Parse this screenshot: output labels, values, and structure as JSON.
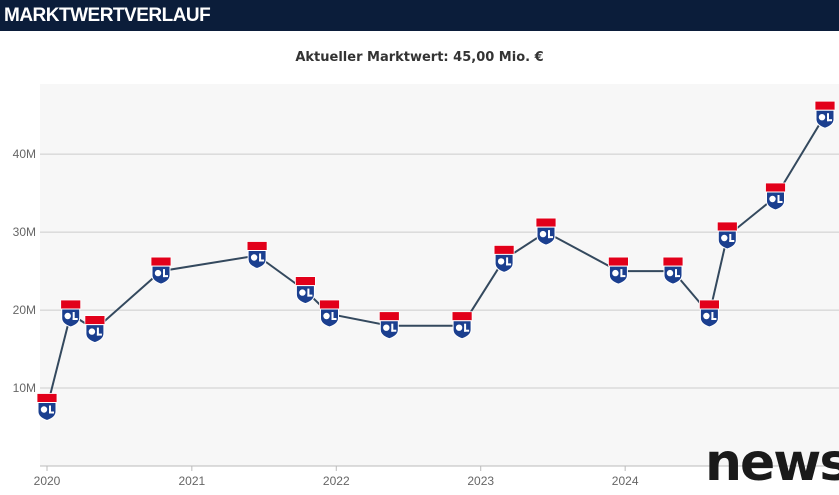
{
  "header": {
    "title": "MARKTWERTVERLAUF"
  },
  "subtitle": "Aktueller Marktwert: 45,00 Mio. €",
  "watermark": "news",
  "colors": {
    "header_bg": "#0b1d3a",
    "plot_bg": "#f7f7f7",
    "line": "#34495e",
    "grid": "#cccccc",
    "badge_red": "#e2001a",
    "badge_blue": "#1b3f8f"
  },
  "marker_icon": "olympique-lyonnais-crest-icon",
  "chart_data": {
    "type": "line",
    "title": "Aktueller Marktwert: 45,00 Mio. €",
    "xlabel": "",
    "ylabel": "",
    "x_ticks": [
      "2020",
      "2021",
      "2022",
      "2023",
      "2024"
    ],
    "y_ticks": [
      "10M",
      "20M",
      "30M",
      "40M"
    ],
    "ylim": [
      0,
      49
    ],
    "xlim": [
      "2020-01-01",
      "2025-05-20"
    ],
    "grid": "horizontal",
    "legend": "none",
    "series": [
      {
        "values": [
          {
            "x": "2020-01-01",
            "y": 7.5
          },
          {
            "x": "2020-03-01",
            "y": 19.5
          },
          {
            "x": "2020-05-01",
            "y": 17.5
          },
          {
            "x": "2020-10-15",
            "y": 25
          },
          {
            "x": "2021-06-15",
            "y": 27
          },
          {
            "x": "2021-10-15",
            "y": 22.5
          },
          {
            "x": "2021-12-15",
            "y": 19.5
          },
          {
            "x": "2022-05-15",
            "y": 18
          },
          {
            "x": "2022-11-15",
            "y": 18
          },
          {
            "x": "2023-03-01",
            "y": 26.5
          },
          {
            "x": "2023-06-15",
            "y": 30
          },
          {
            "x": "2023-12-15",
            "y": 25
          },
          {
            "x": "2024-05-01",
            "y": 25
          },
          {
            "x": "2024-08-01",
            "y": 19.5
          },
          {
            "x": "2024-09-15",
            "y": 29.5
          },
          {
            "x": "2025-01-15",
            "y": 34.5
          },
          {
            "x": "2025-05-20",
            "y": 45
          }
        ]
      }
    ]
  }
}
